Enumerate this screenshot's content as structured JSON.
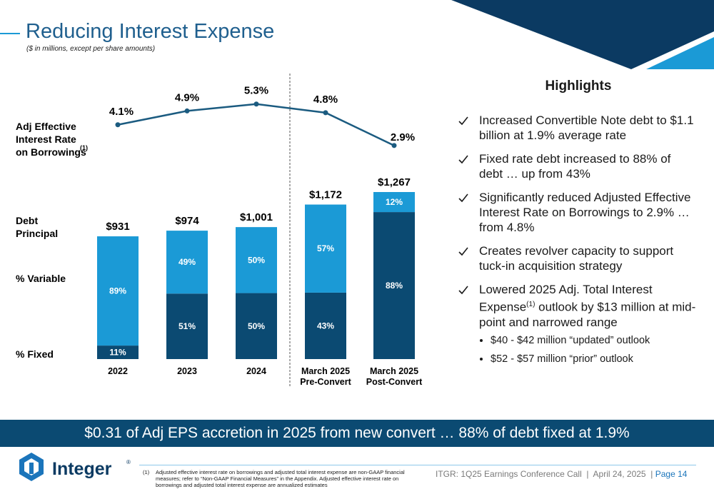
{
  "header": {
    "title": "Reducing Interest Expense",
    "subtitle": "($ in millions, except per share amounts)"
  },
  "chart_data": {
    "type": "stacked-bar-line",
    "categories": [
      [
        "2022"
      ],
      [
        "2023"
      ],
      [
        "2024"
      ],
      [
        "March 2025",
        "Pre-Convert"
      ],
      [
        "March 2025",
        "Post-Convert"
      ]
    ],
    "line": {
      "name": "Adj Effective Interest Rate on Borrowings",
      "note_mark": "(1)",
      "color": "#1b5b80",
      "values": [
        4.1,
        4.9,
        5.3,
        4.8,
        2.9
      ],
      "value_labels": [
        "4.1%",
        "4.9%",
        "5.3%",
        "4.8%",
        "2.9%"
      ]
    },
    "totals": {
      "name": "Debt Principal",
      "values": [
        931,
        974,
        1001,
        1172,
        1267
      ],
      "value_labels": [
        "$931",
        "$974",
        "$1,001",
        "$1,172",
        "$1,267"
      ]
    },
    "series": [
      {
        "name": "% Fixed",
        "color": "#0b4a72",
        "values": [
          11,
          51,
          50,
          43,
          88
        ],
        "value_labels": [
          "11%",
          "51%",
          "50%",
          "43%",
          "88%"
        ]
      },
      {
        "name": "% Variable",
        "color": "#1b9ad6",
        "values": [
          89,
          49,
          50,
          57,
          12
        ],
        "value_labels": [
          "89%",
          "49%",
          "50%",
          "57%",
          "12%"
        ]
      }
    ]
  },
  "highlights": {
    "title": "Highlights",
    "items": [
      {
        "text": "Increased Convertible Note debt to $1.1 billion at 1.9% average rate"
      },
      {
        "text": "Fixed rate debt increased to 88% of debt … up from 43%"
      },
      {
        "text": "Significantly reduced Adjusted Effective Interest Rate on Borrowings to 2.9% … from 4.8%"
      },
      {
        "text": "Creates revolver capacity to support tuck-in acquisition strategy"
      },
      {
        "text": "Lowered 2025 Adj. Total Interest Expense",
        "note_mark": "(1)",
        "text_after": " outlook by $13 million at mid-point and narrowed range",
        "sub_items": [
          "$40 - $42 million “updated” outlook",
          "$52 - $57 million “prior” outlook"
        ]
      }
    ]
  },
  "banner": "$0.31 of Adj EPS accretion in 2025 from new convert … 88% of debt fixed at 1.9%",
  "footer": {
    "logo": "Integer",
    "logo_mark": "®",
    "footnote_mark": "(1)",
    "footnote": "Adjusted effective interest rate on borrowings and adjusted total interest expense are non-GAAP financial measures; refer to “Non-GAAP Financial Measures” in the Appendix. Adjusted effective interest rate on borrowings and adjusted total interest expense are annualized estimates",
    "event": "ITGR: 1Q25 Earnings Conference Call  |  April 24, 2025  |",
    "page": "Page 14"
  }
}
